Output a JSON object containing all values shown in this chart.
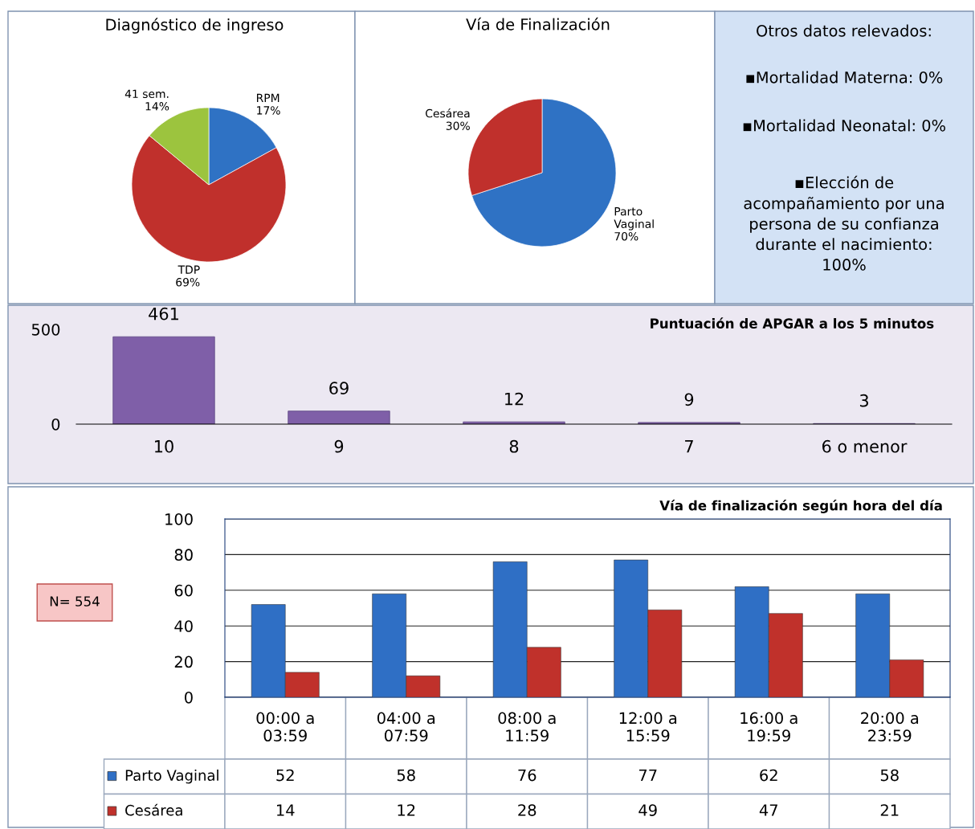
{
  "chart_data": [
    {
      "type": "pie",
      "title": "Diagnóstico de ingreso",
      "categories": [
        "RPM",
        "TDP",
        "41 sem."
      ],
      "values": [
        17,
        69,
        14
      ],
      "value_labels": [
        "17%",
        "69%",
        "14%"
      ],
      "colors": [
        "#2f72c4",
        "#c0302c",
        "#9cc43e"
      ]
    },
    {
      "type": "pie",
      "title": "Vía de Finalización",
      "categories": [
        "Parto\nVaginal",
        "Cesárea"
      ],
      "values": [
        70,
        30
      ],
      "value_labels": [
        "70%",
        "30%"
      ],
      "colors": [
        "#2f72c4",
        "#c0302c"
      ]
    },
    {
      "type": "other",
      "title": "Otros datos relevados:",
      "annotations": [
        "▪Mortalidad Materna: 0%",
        "▪Mortalidad Neonatal: 0%",
        "▪Elección de\nacompañamiento por una\npersona de su confianza\ndurante el nacimiento:\n100%"
      ]
    },
    {
      "type": "bar",
      "title": "Puntuación de APGAR a los 5 minutos",
      "categories": [
        "10",
        "9",
        "8",
        "7",
        "6 o menor"
      ],
      "values": [
        461,
        69,
        12,
        9,
        3
      ],
      "color": "#7f5fa8",
      "ylim": [
        0,
        500
      ],
      "yticks": [
        0,
        500
      ],
      "data_labels": true,
      "grid": false
    },
    {
      "type": "bar",
      "title": "Vía de finalización según hora del día",
      "categories": [
        "00:00 a\n03:59",
        "04:00 a\n07:59",
        "08:00 a\n11:59",
        "12:00 a\n15:59",
        "16:00 a\n19:59",
        "20:00 a\n23:59"
      ],
      "series": [
        {
          "name": "Parto Vaginal",
          "color": "#2f6fc5",
          "values": [
            52,
            58,
            76,
            77,
            62,
            58
          ]
        },
        {
          "name": "Cesárea",
          "color": "#c0312b",
          "values": [
            14,
            12,
            28,
            49,
            47,
            21
          ]
        }
      ],
      "ylim": [
        0,
        100
      ],
      "yticks": [
        0,
        20,
        40,
        60,
        80,
        100
      ],
      "grid": "y",
      "data_labels": true,
      "legend": "bottom left",
      "annotations": [
        "N= 554"
      ]
    }
  ]
}
